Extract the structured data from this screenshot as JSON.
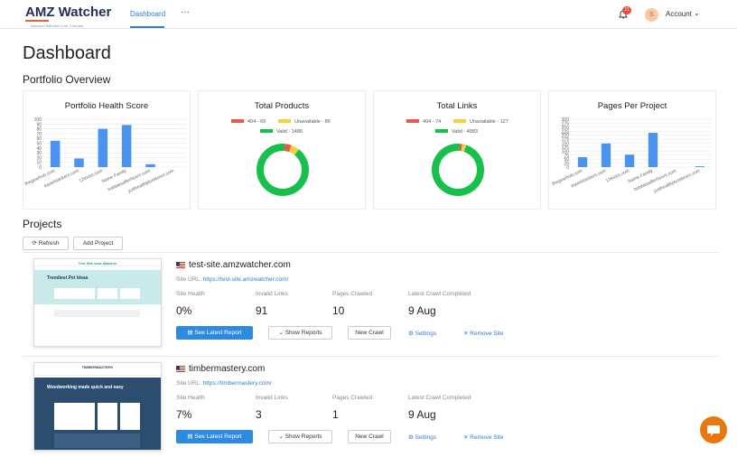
{
  "header": {
    "logo_title": "AMZ Watcher",
    "logo_sub": "Amazon Affiliate Link Checker",
    "nav_tab": "Dashboard",
    "nav_more": "···",
    "notification_count": "11",
    "avatar_initial": "S",
    "account_label": "Account"
  },
  "page": {
    "title": "Dashboard",
    "portfolio_title": "Portfolio Overview",
    "projects_title": "Projects"
  },
  "health": {
    "title": "Portfolio Health Score",
    "ticks": [
      "100",
      "90",
      "80",
      "70",
      "60",
      "50",
      "40",
      "30",
      "20",
      "10",
      "0"
    ],
    "chart_data": {
      "type": "bar",
      "categories": [
        "thegearhub.com",
        "travelstackers.com",
        "12tricks.com",
        "Name Family",
        "hobbiesafterhours.com",
        "justhealthplusstores.com"
      ],
      "values": [
        55,
        18,
        80,
        88,
        6,
        0
      ],
      "ylim": [
        0,
        100
      ]
    }
  },
  "products": {
    "title": "Total Products",
    "legend": [
      "404 - 69",
      "Unavailable - 86",
      "Valid - 1486"
    ],
    "chart_data": {
      "type": "pie",
      "labels": [
        "404",
        "Unavailable",
        "Valid"
      ],
      "values": [
        69,
        86,
        1486
      ],
      "colors": [
        "#e8594a",
        "#f4cf43",
        "#16c04a"
      ]
    }
  },
  "links": {
    "title": "Total Links",
    "legend": [
      "404 - 74",
      "Unavailable - 127",
      "Valid - 4983"
    ],
    "chart_data": {
      "type": "pie",
      "labels": [
        "404",
        "Unavailable",
        "Valid"
      ],
      "values": [
        74,
        127,
        4983
      ],
      "colors": [
        "#e8594a",
        "#f4cf43",
        "#16c04a"
      ]
    }
  },
  "pages": {
    "title": "Pages Per Project",
    "ticks": [
      "300",
      "275",
      "250",
      "225",
      "200",
      "175",
      "150",
      "125",
      "100",
      "75",
      "50",
      "25",
      "0"
    ],
    "chart_data": {
      "type": "bar",
      "categories": [
        "thegearhub.com",
        "travelstackers.com",
        "12tricks.com",
        "Name Family",
        "hobbiesafterhours.com",
        "justhealthplusstores.com"
      ],
      "values": [
        62,
        148,
        78,
        215,
        0,
        5
      ],
      "ylim": [
        0,
        300
      ]
    }
  },
  "projects_toolbar": {
    "refresh": "Refresh",
    "add": "Add Project"
  },
  "labels": {
    "url": "Site URL:",
    "health": "Site Health",
    "invalid": "Invalid Links",
    "pages": "Pages Crawled",
    "last": "Latest Crawl Completed",
    "see_report": "See Latest Report",
    "show_reports": "Show Reports",
    "new_crawl": "New Crawl",
    "settings": "Settings",
    "remove": "Remove Site"
  },
  "projects": [
    {
      "name": "test-site.amzwatcher.com",
      "url": "https://test-site.amzwatcher.com/",
      "health": "0%",
      "invalid": "91",
      "pages": "10",
      "last": "9 Aug",
      "thumb_title": "Test Site Ama Watcher",
      "thumb_heading": "Trendiest Pet Ideas"
    },
    {
      "name": "timbermastery.com",
      "url": "https://timbermastery.com/",
      "health": "7%",
      "invalid": "3",
      "pages": "1",
      "last": "9 Aug",
      "thumb_title": "TIMBERMASTERY",
      "thumb_heading": "Woodworking made quick and easy"
    }
  ],
  "colors": {
    "accent": "#2d7dd2",
    "bar": "#4b93f1",
    "valid": "#16c04a",
    "unavailable": "#f4cf43",
    "error": "#e8594a"
  }
}
